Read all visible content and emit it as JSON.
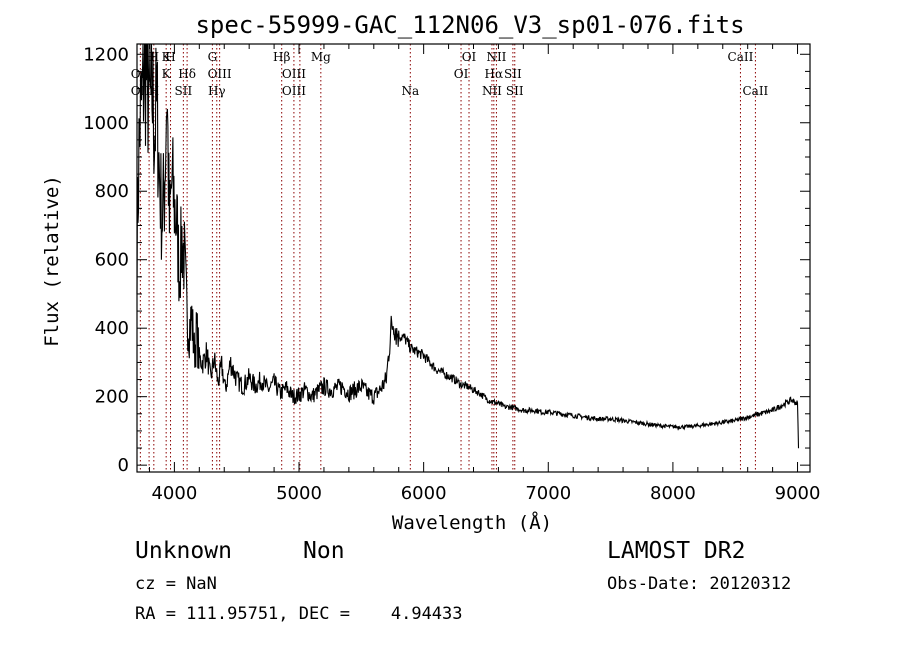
{
  "chart_data": {
    "type": "line",
    "title": "spec-55999-GAC_112N06_V3_sp01-076.fits",
    "xlabel": "Wavelength (Å)",
    "ylabel": "Flux (relative)",
    "xlim": [
      3700,
      9100
    ],
    "ylim": [
      -20,
      1230
    ],
    "xticks": [
      4000,
      5000,
      6000,
      7000,
      8000,
      9000
    ],
    "yticks": [
      0,
      200,
      400,
      600,
      800,
      1000,
      1200
    ],
    "line_color": "#000000",
    "marker_color": "#8b0000",
    "series": [
      {
        "x": [
          3700,
          3720,
          3740,
          3760,
          3780,
          3800,
          3820,
          3840,
          3860,
          3880,
          3900,
          3920,
          3940,
          3960,
          3980,
          4000,
          4020,
          4040,
          4060,
          4080,
          4100,
          4120,
          4140,
          4160,
          4180,
          4200,
          4230,
          4260,
          4290,
          4320,
          4350,
          4380,
          4410,
          4450,
          4500,
          4550,
          4600,
          4650,
          4700,
          4750,
          4800,
          4850,
          4900,
          4950,
          5000,
          5050,
          5100,
          5150,
          5200,
          5250,
          5300,
          5350,
          5400,
          5450,
          5500,
          5550,
          5600,
          5650,
          5700,
          5720,
          5740,
          5760,
          5780,
          5800,
          5850,
          5900,
          5950,
          6000,
          6050,
          6100,
          6150,
          6200,
          6250,
          6300,
          6350,
          6400,
          6450,
          6500,
          6550,
          6600,
          6650,
          6700,
          6750,
          6800,
          6850,
          6900,
          6950,
          7000,
          7100,
          7200,
          7300,
          7400,
          7500,
          7600,
          7700,
          7800,
          7900,
          8000,
          8100,
          8200,
          8300,
          8400,
          8500,
          8600,
          8700,
          8800,
          8850,
          8900,
          8950,
          9000,
          9010
        ],
        "y": [
          640,
          990,
          1060,
          1180,
          1130,
          1040,
          1100,
          980,
          1050,
          850,
          720,
          800,
          1110,
          690,
          830,
          760,
          700,
          560,
          660,
          600,
          440,
          400,
          430,
          330,
          390,
          310,
          300,
          330,
          250,
          310,
          240,
          290,
          220,
          300,
          250,
          230,
          255,
          230,
          250,
          220,
          240,
          210,
          225,
          200,
          205,
          220,
          200,
          215,
          230,
          220,
          225,
          230,
          210,
          220,
          230,
          210,
          200,
          220,
          250,
          330,
          400,
          420,
          390,
          380,
          370,
          340,
          330,
          320,
          300,
          280,
          270,
          260,
          250,
          235,
          230,
          220,
          210,
          195,
          185,
          180,
          170,
          170,
          165,
          160,
          160,
          160,
          155,
          155,
          150,
          145,
          140,
          135,
          135,
          130,
          125,
          120,
          115,
          112,
          112,
          115,
          120,
          125,
          130,
          140,
          150,
          160,
          170,
          180,
          190,
          180,
          20
        ]
      }
    ],
    "spectral_lines": {
      "top": [
        {
          "label": "H",
          "x": 3797
        },
        {
          "label": "H",
          "x": 3835
        },
        {
          "label": "K",
          "x": 3934
        },
        {
          "label": "H",
          "x": 3969
        },
        {
          "label": "G",
          "x": 4305
        },
        {
          "label": "Hβ",
          "x": 4861
        },
        {
          "label": "Mg",
          "x": 5175
        },
        {
          "label": "OI",
          "x": 6364
        },
        {
          "label": "NII",
          "x": 6584
        },
        {
          "label": "CaII",
          "x": 8542
        }
      ],
      "middle": [
        {
          "label": "OII",
          "x": 3727
        },
        {
          "label": "K",
          "x": 3934
        },
        {
          "label": "Hδ",
          "x": 4102
        },
        {
          "label": "OIII",
          "x": 4363
        },
        {
          "label": "OIII",
          "x": 4959
        },
        {
          "label": "OI",
          "x": 6300
        },
        {
          "label": "Hα",
          "x": 6563
        },
        {
          "label": "SII",
          "x": 6716
        }
      ],
      "bottom": [
        {
          "label": "OII",
          "x": 3727
        },
        {
          "label": "H",
          "x": 3835
        },
        {
          "label": "SII",
          "x": 4072
        },
        {
          "label": "Hγ",
          "x": 4340
        },
        {
          "label": "OIII",
          "x": 4959
        },
        {
          "label": "Na",
          "x": 5893
        },
        {
          "label": "NII",
          "x": 6548
        },
        {
          "label": "SII",
          "x": 6731
        },
        {
          "label": "CaII",
          "x": 8662
        }
      ],
      "marker_positions": [
        3727,
        3797,
        3835,
        3934,
        3969,
        4072,
        4102,
        4305,
        4340,
        4363,
        4861,
        4959,
        5007,
        5175,
        5893,
        6300,
        6364,
        6548,
        6563,
        6584,
        6716,
        6731,
        8542,
        8662
      ]
    }
  },
  "info": {
    "class": "Unknown",
    "subclass": "Non",
    "survey": "LAMOST DR2",
    "cz": "cz = NaN",
    "obs_date": "Obs-Date: 20120312",
    "radec": "RA = 111.95751, DEC =    4.94433"
  }
}
